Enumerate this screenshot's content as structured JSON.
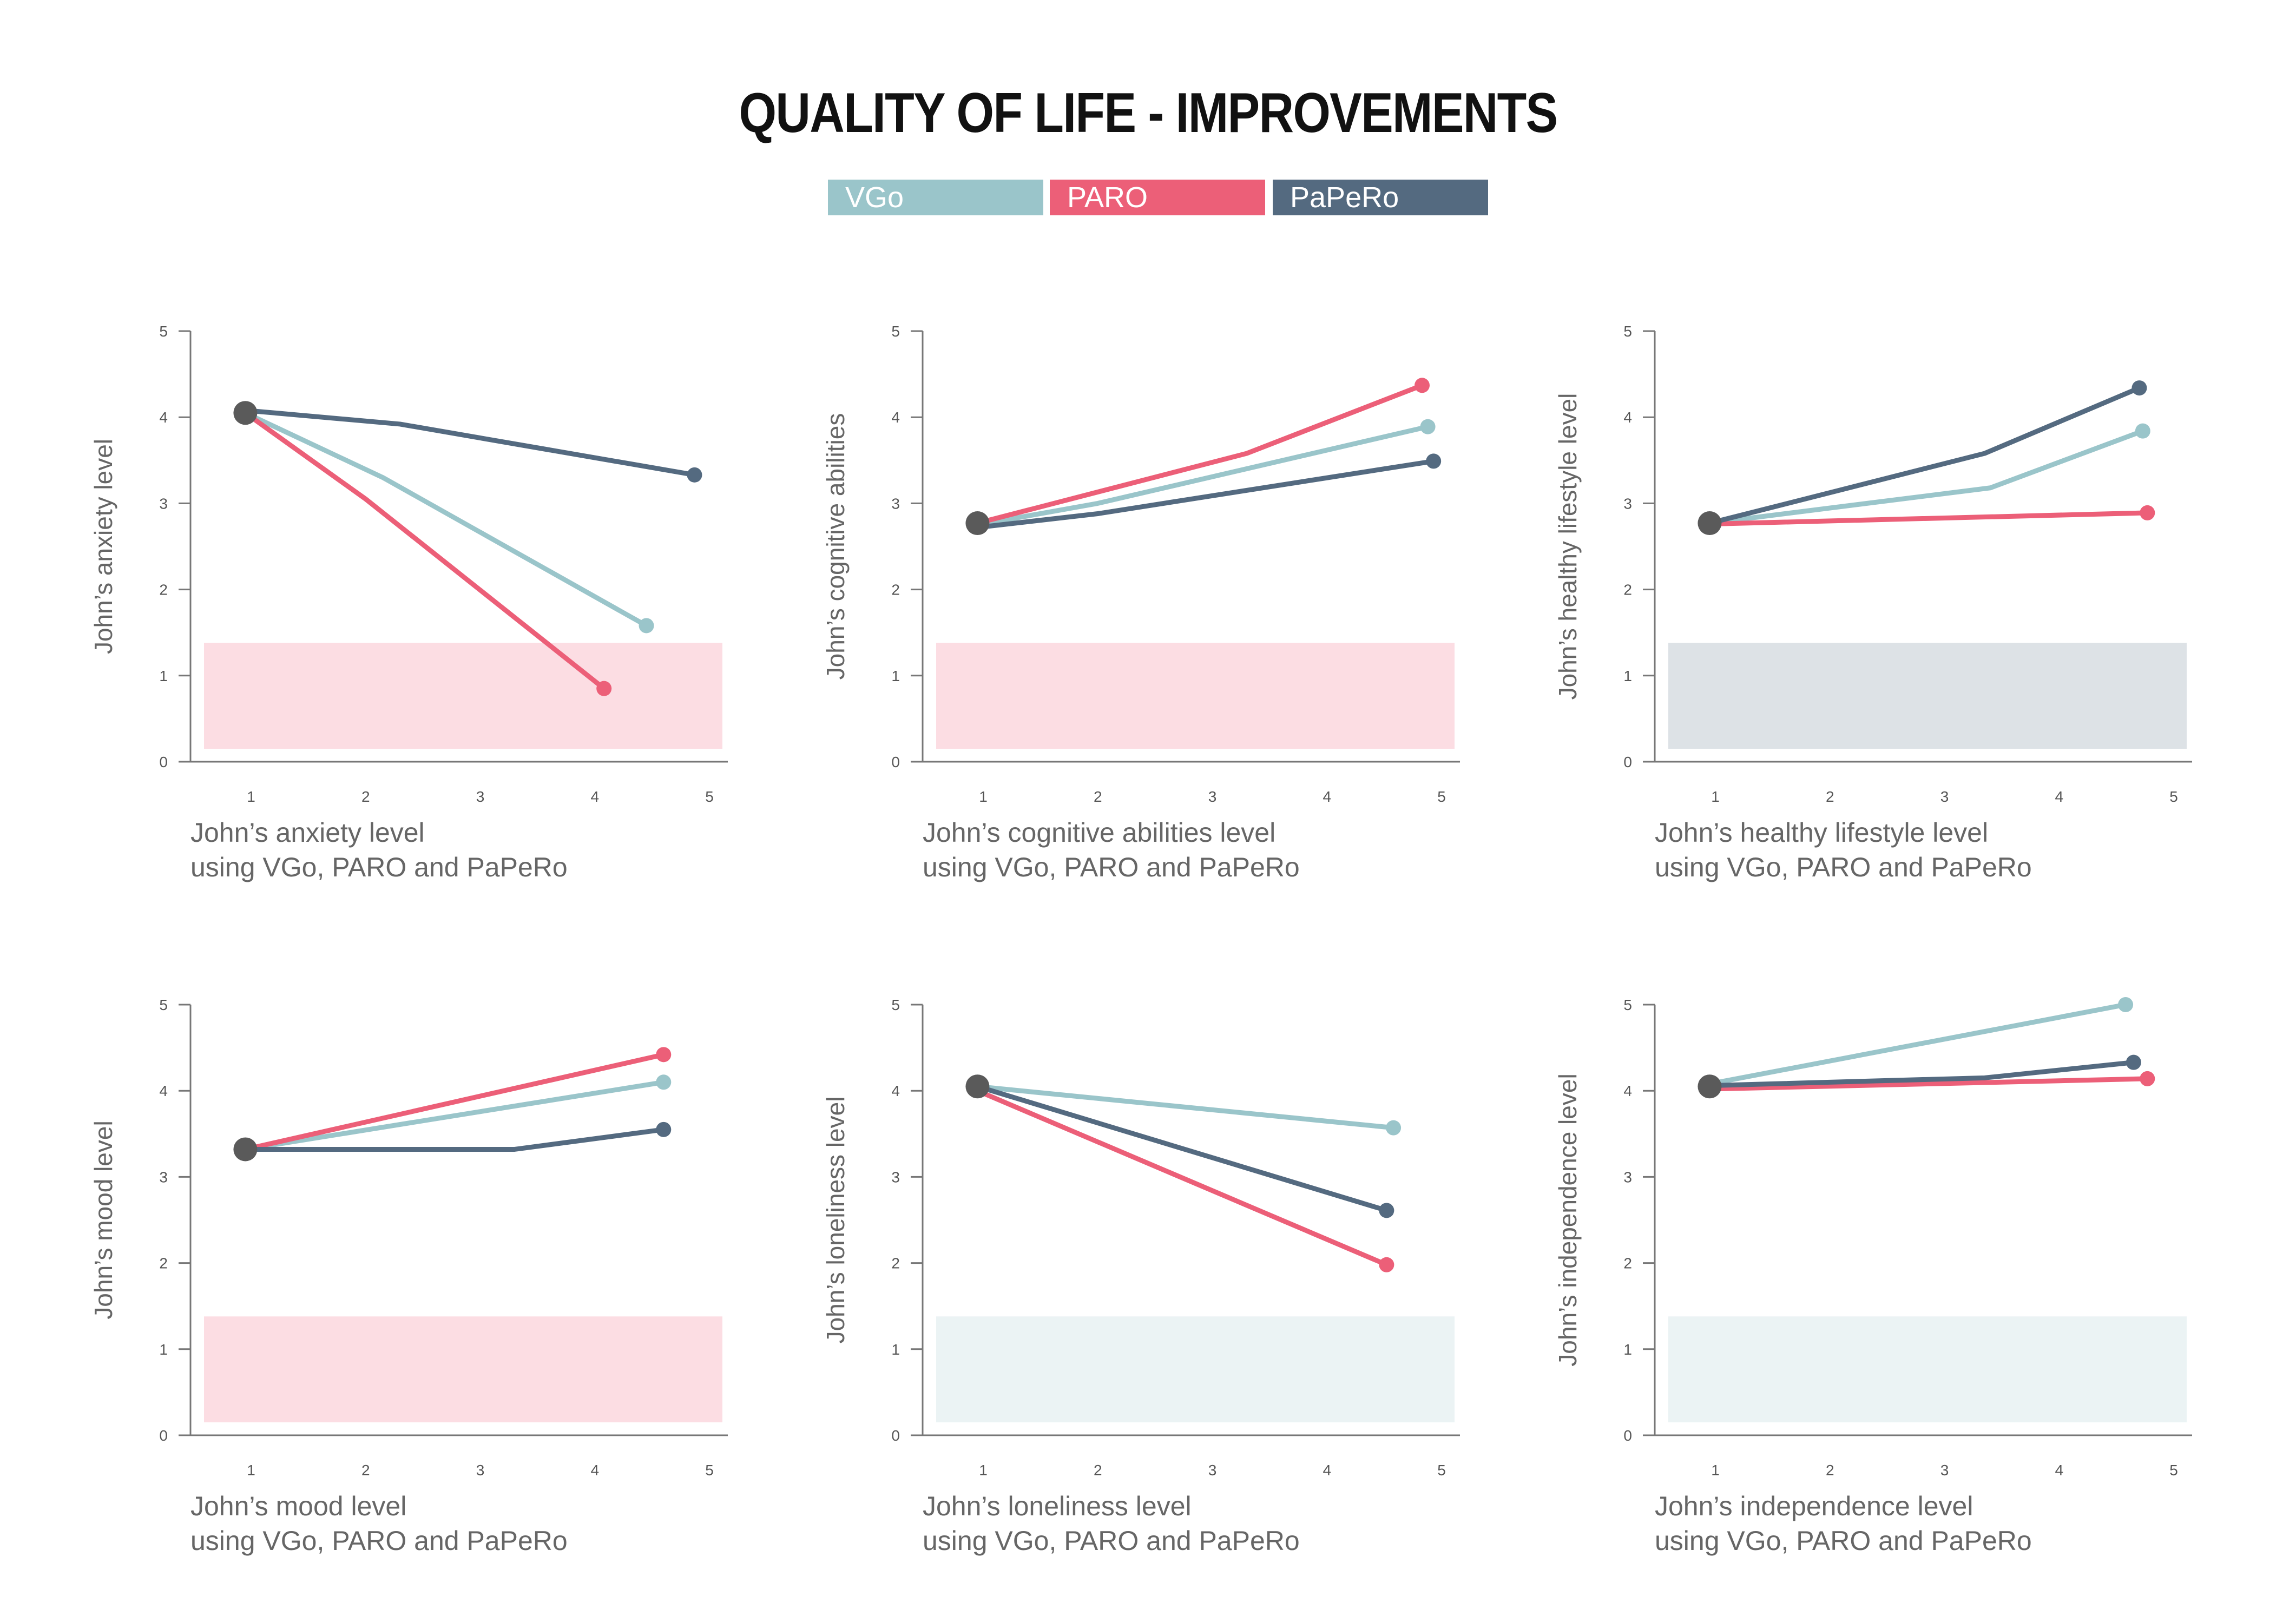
{
  "title": "QUALITY OF LIFE - IMPROVEMENTS",
  "colors": {
    "VGo": "#9ac5ca",
    "PARO": "#ec5f78",
    "PaPeRo": "#546a80",
    "start": "#5a5a5a",
    "axis": "#777777"
  },
  "legend": [
    {
      "name": "VGo",
      "color": "#9ac5ca"
    },
    {
      "name": "PARO",
      "color": "#ec5f78"
    },
    {
      "name": "PaPeRo",
      "color": "#546a80"
    }
  ],
  "chart_data": [
    {
      "type": "line",
      "ylabel": "John’s anxiety level",
      "xlabel": [
        "John’s anxiety level",
        "using VGo, PARO and PaPeRo"
      ],
      "xticks": [
        "1",
        "2",
        "3",
        "4",
        "5"
      ],
      "yticks": [
        "0",
        "1",
        "2",
        "3",
        "4",
        "5"
      ],
      "xlim": [
        0.5,
        5
      ],
      "ylim": [
        0,
        5
      ],
      "band": {
        "y0": 0.15,
        "y1": 1.38,
        "color": "#fcdde3"
      },
      "start": {
        "x": 0.95,
        "y": 4.05
      },
      "series": [
        {
          "name": "VGo",
          "color": "#9ac5ca",
          "x": [
            0.95,
            2.15,
            4.45
          ],
          "y": [
            4.05,
            3.3,
            1.58
          ]
        },
        {
          "name": "PARO",
          "color": "#ec5f78",
          "x": [
            0.95,
            2.0,
            4.08
          ],
          "y": [
            4.05,
            3.05,
            0.85
          ]
        },
        {
          "name": "PaPeRo",
          "color": "#546a80",
          "x": [
            0.95,
            2.3,
            4.87
          ],
          "y": [
            4.08,
            3.92,
            3.33
          ]
        }
      ]
    },
    {
      "type": "line",
      "ylabel": "John’s cognitive abilities",
      "xlabel": [
        "John’s cognitive abilities level",
        "using VGo, PARO and PaPeRo"
      ],
      "xticks": [
        "1",
        "2",
        "3",
        "4",
        "5"
      ],
      "yticks": [
        "0",
        "1",
        "2",
        "3",
        "4",
        "5"
      ],
      "xlim": [
        0.5,
        5
      ],
      "ylim": [
        0,
        5
      ],
      "band": {
        "y0": 0.15,
        "y1": 1.38,
        "color": "#fcdde3"
      },
      "start": {
        "x": 0.95,
        "y": 2.77
      },
      "series": [
        {
          "name": "VGo",
          "color": "#9ac5ca",
          "x": [
            0.95,
            2.0,
            4.88
          ],
          "y": [
            2.75,
            3.0,
            3.89
          ]
        },
        {
          "name": "PARO",
          "color": "#ec5f78",
          "x": [
            0.95,
            3.3,
            4.83
          ],
          "y": [
            2.77,
            3.58,
            4.37
          ]
        },
        {
          "name": "PaPeRo",
          "color": "#546a80",
          "x": [
            0.95,
            2.0,
            4.93
          ],
          "y": [
            2.72,
            2.88,
            3.49
          ]
        }
      ]
    },
    {
      "type": "line",
      "ylabel": "John’s healthy lifestyle level",
      "xlabel": [
        "John’s healthy lifestyle level",
        "using VGo, PARO and PaPeRo"
      ],
      "xticks": [
        "1",
        "2",
        "3",
        "4",
        "5"
      ],
      "yticks": [
        "0",
        "1",
        "2",
        "3",
        "4",
        "5"
      ],
      "xlim": [
        0.5,
        5
      ],
      "ylim": [
        0,
        5
      ],
      "band": {
        "y0": 0.15,
        "y1": 1.38,
        "color": "#dde2e6"
      },
      "start": {
        "x": 0.95,
        "y": 2.77
      },
      "series": [
        {
          "name": "VGo",
          "color": "#9ac5ca",
          "x": [
            0.95,
            3.4,
            4.73
          ],
          "y": [
            2.77,
            3.18,
            3.84
          ]
        },
        {
          "name": "PARO",
          "color": "#ec5f78",
          "x": [
            0.95,
            4.77
          ],
          "y": [
            2.76,
            2.89
          ]
        },
        {
          "name": "PaPeRo",
          "color": "#546a80",
          "x": [
            0.95,
            3.35,
            4.7
          ],
          "y": [
            2.77,
            3.58,
            4.34
          ]
        }
      ]
    },
    {
      "type": "line",
      "ylabel": "John’s mood level",
      "xlabel": [
        "John’s mood level",
        "using VGo, PARO and PaPeRo"
      ],
      "xticks": [
        "1",
        "2",
        "3",
        "4",
        "5"
      ],
      "yticks": [
        "0",
        "1",
        "2",
        "3",
        "4",
        "5"
      ],
      "xlim": [
        0.5,
        5
      ],
      "ylim": [
        0,
        5
      ],
      "band": {
        "y0": 0.15,
        "y1": 1.38,
        "color": "#fcdde3"
      },
      "start": {
        "x": 0.95,
        "y": 3.32
      },
      "series": [
        {
          "name": "VGo",
          "color": "#9ac5ca",
          "x": [
            0.95,
            4.6
          ],
          "y": [
            3.32,
            4.1
          ]
        },
        {
          "name": "PARO",
          "color": "#ec5f78",
          "x": [
            0.95,
            4.6
          ],
          "y": [
            3.32,
            4.42
          ]
        },
        {
          "name": "PaPeRo",
          "color": "#546a80",
          "x": [
            0.95,
            3.3,
            4.6
          ],
          "y": [
            3.32,
            3.32,
            3.55
          ]
        }
      ]
    },
    {
      "type": "line",
      "ylabel": "John’s loneliness level",
      "xlabel": [
        "John’s loneliness level",
        "using VGo, PARO and PaPeRo"
      ],
      "xticks": [
        "1",
        "2",
        "3",
        "4",
        "5"
      ],
      "yticks": [
        "0",
        "1",
        "2",
        "3",
        "4",
        "5"
      ],
      "xlim": [
        0.5,
        5
      ],
      "ylim": [
        0,
        5
      ],
      "band": {
        "y0": 0.15,
        "y1": 1.38,
        "color": "#ebf3f4"
      },
      "start": {
        "x": 0.95,
        "y": 4.05
      },
      "series": [
        {
          "name": "VGo",
          "color": "#9ac5ca",
          "x": [
            0.95,
            4.58
          ],
          "y": [
            4.05,
            3.57
          ]
        },
        {
          "name": "PARO",
          "color": "#ec5f78",
          "x": [
            0.95,
            4.52
          ],
          "y": [
            4.0,
            1.98
          ]
        },
        {
          "name": "PaPeRo",
          "color": "#546a80",
          "x": [
            0.95,
            4.52
          ],
          "y": [
            4.05,
            2.61
          ]
        }
      ]
    },
    {
      "type": "line",
      "ylabel": "John’s independence level",
      "xlabel": [
        "John’s independence level",
        "using VGo, PARO and PaPeRo"
      ],
      "xticks": [
        "1",
        "2",
        "3",
        "4",
        "5"
      ],
      "yticks": [
        "0",
        "1",
        "2",
        "3",
        "4",
        "5"
      ],
      "xlim": [
        0.5,
        5
      ],
      "ylim": [
        0,
        5
      ],
      "band": {
        "y0": 0.15,
        "y1": 1.38,
        "color": "#ebf3f4"
      },
      "start": {
        "x": 0.95,
        "y": 4.05
      },
      "series": [
        {
          "name": "VGo",
          "color": "#9ac5ca",
          "x": [
            0.95,
            4.58
          ],
          "y": [
            4.08,
            5.0
          ]
        },
        {
          "name": "PARO",
          "color": "#ec5f78",
          "x": [
            0.95,
            4.77
          ],
          "y": [
            4.02,
            4.14
          ]
        },
        {
          "name": "PaPeRo",
          "color": "#546a80",
          "x": [
            0.95,
            3.35,
            4.65
          ],
          "y": [
            4.06,
            4.15,
            4.33
          ]
        }
      ]
    }
  ]
}
